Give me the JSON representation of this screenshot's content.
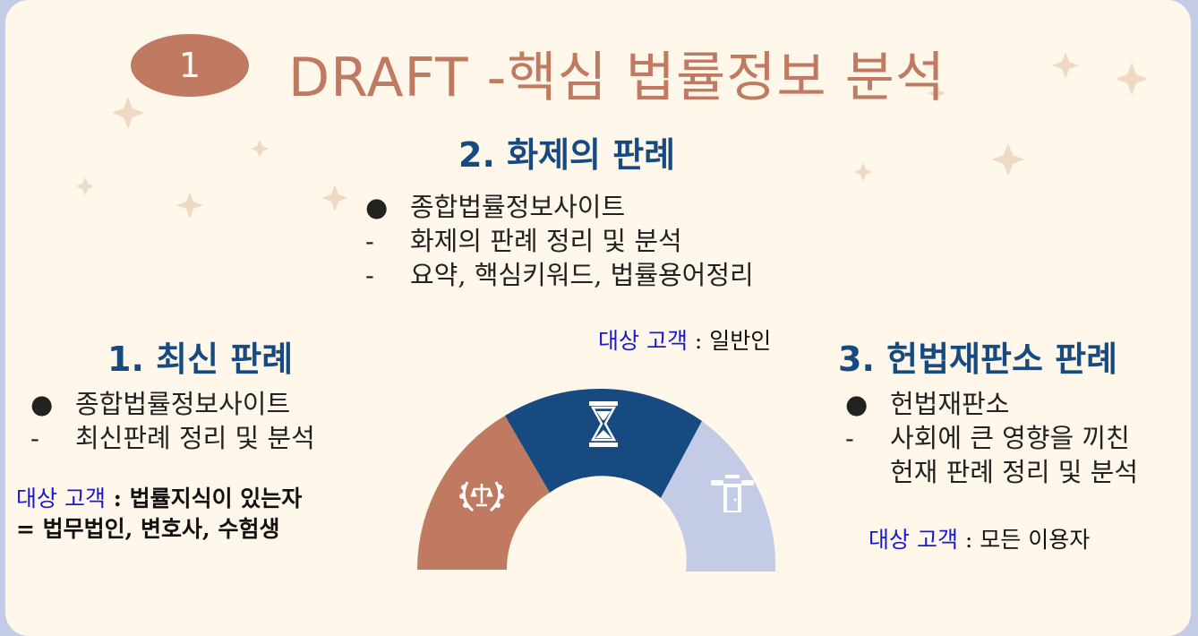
{
  "badge": {
    "number": "1"
  },
  "title": "DRAFT -핵심 법률정보 분석",
  "center": {
    "title": "2. 화제의 판례",
    "bullet_marker": "●",
    "dash_marker": "-",
    "site": "종합법률정보사이트",
    "items": [
      "화제의 판례 정리 및 분석",
      "요약, 핵심키워드, 법률용어정리"
    ],
    "target_label": "대상 고객",
    "target_value": " : 일반인"
  },
  "left": {
    "title": "1.  최신 판례",
    "bullet_marker": "●",
    "dash_marker": "-",
    "site": "종합법률정보사이트",
    "items": [
      "최신판례 정리 및 분석"
    ],
    "target_label": "대상 고객",
    "target_value": " : 법률지식이 있는자",
    "target_line2": "= 법무법인, 변호사, 수험생"
  },
  "right": {
    "title": "3. 헌법재판소 판례",
    "bullet_marker": "●",
    "dash_marker": "-",
    "site": "헌법재판소",
    "items": [
      "사회에 큰 영향을 끼친",
      "헌재 판례 정리 및 분석"
    ],
    "target_label": "대상 고객",
    "target_value": " : 모든 이용자"
  },
  "colors": {
    "accent_brown": "#c07a62",
    "accent_navy": "#164a80",
    "accent_lavender": "#c3cbe6",
    "target_label_blue": "#1919d2"
  },
  "icons": {
    "left_segment": "laurel-scales-icon",
    "center_segment": "hourglass-icon",
    "right_segment": "scales-door-icon"
  }
}
